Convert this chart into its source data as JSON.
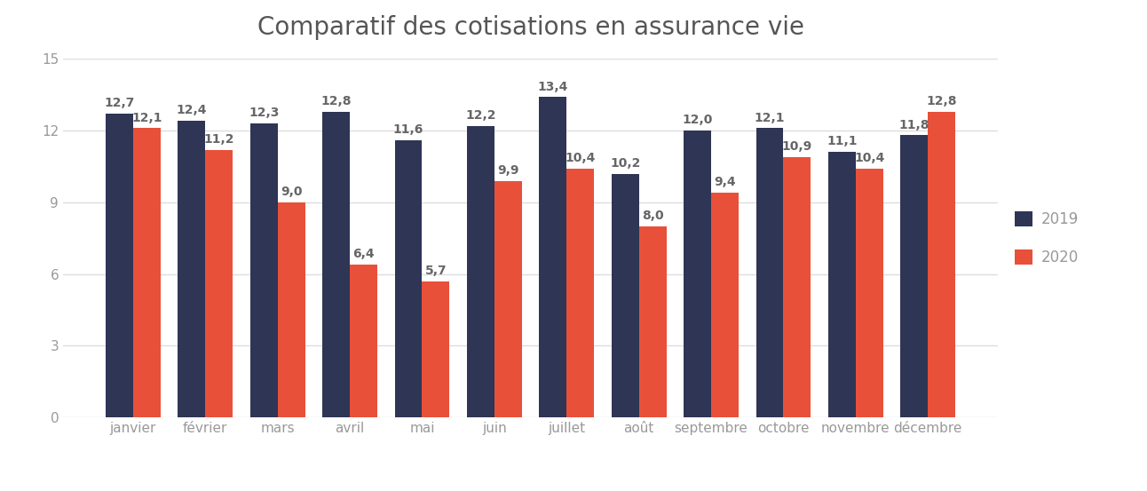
{
  "title": "Comparatif des cotisations en assurance vie",
  "categories": [
    "janvier",
    "février",
    "mars",
    "avril",
    "mai",
    "juin",
    "juillet",
    "août",
    "septembre",
    "octobre",
    "novembre",
    "décembre"
  ],
  "values_2019": [
    12.7,
    12.4,
    12.3,
    12.8,
    11.6,
    12.2,
    13.4,
    10.2,
    12.0,
    12.1,
    11.1,
    11.8
  ],
  "values_2020": [
    12.1,
    11.2,
    9.0,
    6.4,
    5.7,
    9.9,
    10.4,
    8.0,
    9.4,
    10.9,
    10.4,
    12.8
  ],
  "labels_2019": [
    "12,7",
    "12,4",
    "12,3",
    "12,8",
    "11,6",
    "12,2",
    "13,4",
    "10,2",
    "12,0",
    "12,1",
    "11,1",
    "11,8"
  ],
  "labels_2020": [
    "12,1",
    "11,2",
    "9,0",
    "6,4",
    "5,7",
    "9,9",
    "10,4",
    "8,0",
    "9,4",
    "10,9",
    "10,4",
    "12,8"
  ],
  "color_2019": "#2E3555",
  "color_2020": "#E8503A",
  "legend_2019": "2019",
  "legend_2020": "2020",
  "ylim": [
    0,
    15
  ],
  "yticks": [
    0,
    3,
    6,
    9,
    12,
    15
  ],
  "background_color": "#FFFFFF",
  "title_fontsize": 20,
  "label_fontsize": 10,
  "tick_fontsize": 11,
  "bar_width": 0.38,
  "legend_fontsize": 12,
  "tick_color": "#999999",
  "label_color": "#666666",
  "grid_color": "#DDDDDD"
}
